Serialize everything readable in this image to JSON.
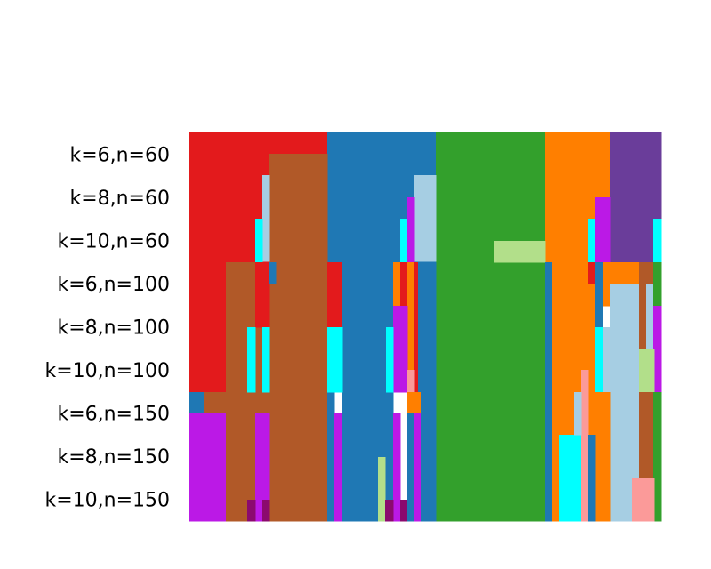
{
  "palette": {
    "red": "#e31a1c",
    "blue": "#1f78b4",
    "green": "#33a02c",
    "orange": "#ff7f00",
    "purple": "#6a3d9a",
    "brown": "#b15928",
    "lightblue": "#a6cee3",
    "cyan": "#00ffff",
    "magenta": "#bb19e6",
    "lightgreen": "#b2df8a",
    "pink": "#fb9a99",
    "darkmagenta": "#8b0a6e"
  },
  "chart_data": {
    "type": "heatmap",
    "title": "",
    "xlabel": "",
    "ylabel": "",
    "rows": [
      "k=6,n=60",
      "k=8,n=60",
      "k=10,n=60",
      "k=6,n=100",
      "k=8,n=100",
      "k=10,n=100",
      "k=6,n=150",
      "k=8,n=150",
      "k=10,n=150"
    ],
    "segments": [
      [
        "red",
        37,
        "brown",
        8,
        "red",
        8,
        "blue",
        8,
        "blue",
        7,
        "green",
        7,
        "green",
        8,
        "orange",
        7,
        "orange",
        4,
        "purple",
        6
      ],
      [
        "red",
        37,
        "brown",
        8,
        "red",
        8,
        "blue",
        8,
        "blue",
        7,
        "green",
        7,
        "green",
        8,
        "orange",
        7,
        "orange",
        4,
        "purple",
        6
      ],
      [
        "red",
        37,
        "brown",
        8,
        "red",
        8,
        "blue",
        8,
        "blue",
        7,
        "green",
        7,
        "green",
        8,
        "orange",
        7,
        "orange",
        4,
        "purple",
        6
      ],
      [
        "red",
        37,
        "brown",
        8,
        "red",
        8,
        "blue",
        8,
        "blue",
        7,
        "green",
        7,
        "green",
        8,
        "orange",
        7,
        "orange",
        4,
        "purple",
        6
      ],
      [
        "red",
        37,
        "brown",
        8,
        "red",
        8,
        "blue",
        8,
        "blue",
        7,
        "green",
        7,
        "green",
        8,
        "orange",
        7,
        "orange",
        4,
        "purple",
        6
      ],
      [
        "red",
        37,
        "brown",
        8,
        "red",
        8,
        "blue",
        8,
        "blue",
        7,
        "green",
        7,
        "green",
        8,
        "orange",
        7,
        "orange",
        4,
        "purple",
        6
      ],
      [
        "red",
        37,
        "brown",
        8,
        "red",
        8,
        "blue",
        8,
        "blue",
        7,
        "green",
        7,
        "green",
        8,
        "orange",
        7,
        "orange",
        4,
        "purple",
        6
      ],
      [
        "red",
        37,
        "brown",
        8,
        "red",
        8,
        "blue",
        8,
        "blue",
        7,
        "green",
        7,
        "green",
        8,
        "orange",
        7,
        "orange",
        4,
        "purple",
        6
      ],
      [
        "red",
        37,
        "brown",
        8,
        "red",
        8,
        "blue",
        8,
        "blue",
        7,
        "green",
        7,
        "green",
        8,
        "orange",
        7,
        "orange",
        4,
        "purple",
        6
      ]
    ],
    "columns": 131,
    "grid": false,
    "legend": "none"
  }
}
